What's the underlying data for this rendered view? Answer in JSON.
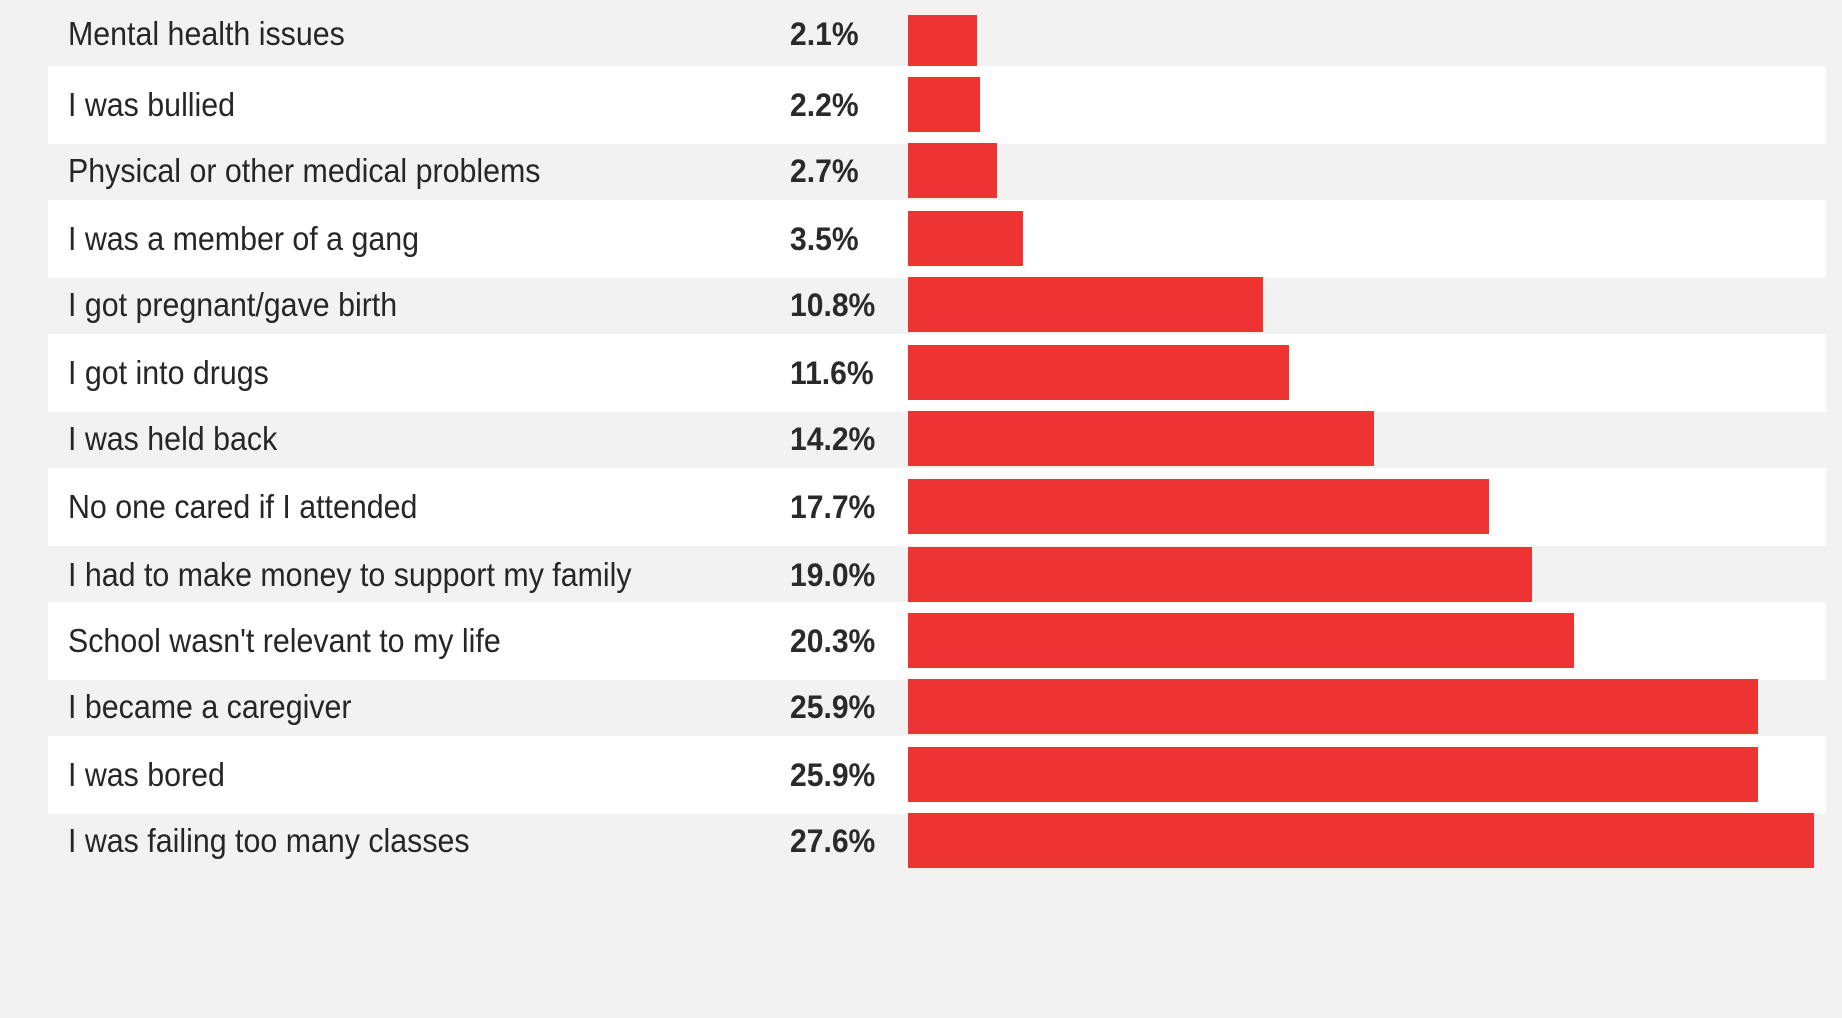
{
  "colors": {
    "bar": "#ee3333",
    "row_alt": "#ffffff",
    "row_base": "#f2f2f2",
    "text": "#262626"
  },
  "chart_data": {
    "type": "bar",
    "orientation": "horizontal",
    "categories": [
      "Mental health issues",
      "I was bullied",
      "Physical or other medical problems",
      "I was a member of a gang",
      "I got pregnant/gave birth",
      "I got into drugs",
      "I was held back",
      "No one cared if I attended",
      "I had to make money to support my family",
      "School wasn't relevant to my life",
      "I became a caregiver",
      "I was bored",
      "I was failing too many classes"
    ],
    "values": [
      2.1,
      2.2,
      2.7,
      3.5,
      10.8,
      11.6,
      14.2,
      17.7,
      19.0,
      20.3,
      25.9,
      25.9,
      27.6
    ],
    "value_labels": [
      "2.1%",
      "2.2%",
      "2.7%",
      "3.5%",
      "10.8%",
      "11.6%",
      "14.2%",
      "17.7%",
      "19.0%",
      "20.3%",
      "25.9%",
      "25.9%",
      "27.6%"
    ],
    "unit": "%",
    "xlim": [
      0,
      27.6
    ],
    "grid": false,
    "legend": "none"
  }
}
